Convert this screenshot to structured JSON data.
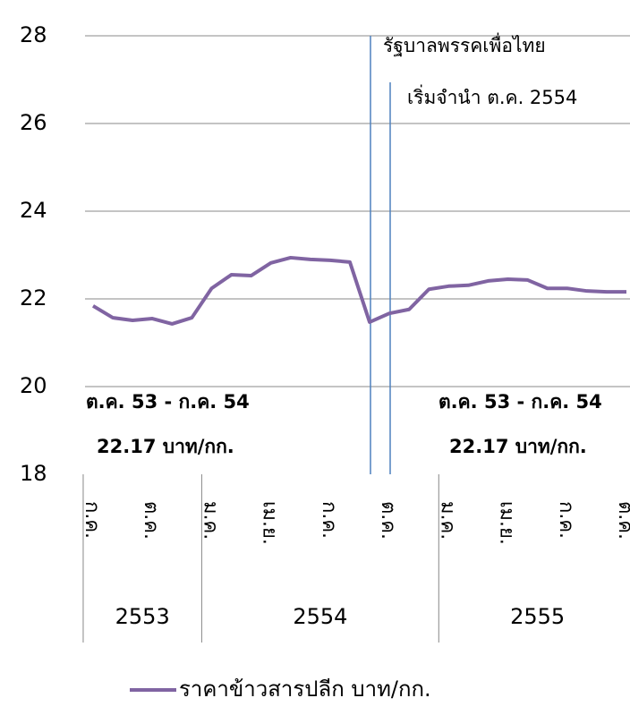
{
  "chart_data": {
    "type": "line",
    "categories": [
      "ก.ค.",
      null,
      null,
      "ต.ค.",
      null,
      null,
      "ม.ค.",
      null,
      null,
      "เม.ย.",
      null,
      null,
      "ก.ค.",
      null,
      null,
      "ต.ค.",
      null,
      null,
      "ม.ค.",
      null,
      null,
      "เม.ย.",
      null,
      null,
      "ก.ค.",
      null,
      null,
      "ต.ค."
    ],
    "groups": [
      {
        "label": "2553",
        "span": 6
      },
      {
        "label": "2554",
        "span": 12
      },
      {
        "label": "2555",
        "span": 10
      }
    ],
    "series": [
      {
        "name": "ราคาข้าวสารปลีก บาท/กก.",
        "color": "#8064a2",
        "values": [
          21.84,
          21.57,
          21.51,
          21.55,
          21.43,
          21.57,
          22.24,
          22.55,
          22.53,
          22.82,
          22.94,
          22.9,
          22.88,
          22.84,
          21.47,
          21.67,
          21.76,
          22.22,
          22.29,
          22.31,
          22.41,
          22.45,
          22.43,
          22.24,
          22.24,
          22.18,
          22.16,
          22.16
        ]
      }
    ],
    "ylim": [
      18,
      28
    ],
    "yticks": [
      18,
      20,
      22,
      24,
      26,
      28
    ],
    "grid": true,
    "annotations": [
      "รัฐบาลพรรคเพื่อไทย",
      "เริ่มจำนำ ต.ค. 2554",
      "ต.ค. 53 - ก.ค. 54",
      "22.17 บาท/กก.",
      "ต.ค. 53 - ก.ค. 54",
      "22.17 บาท/กก."
    ]
  }
}
